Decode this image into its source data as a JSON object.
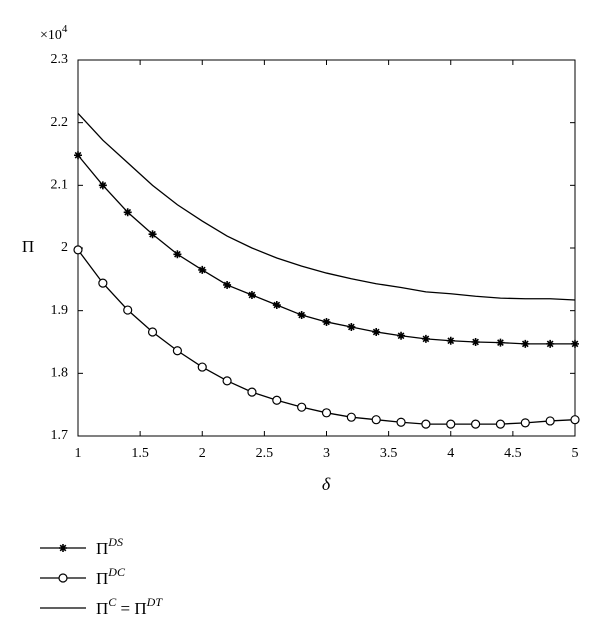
{
  "chart_data": {
    "type": "line",
    "x_label": "δ",
    "y_label": "Π",
    "y_multiplier": {
      "text": "×10",
      "sup": "4"
    },
    "x": [
      1,
      1.2,
      1.4,
      1.6,
      1.8,
      2,
      2.2,
      2.4,
      2.6,
      2.8,
      3,
      3.2,
      3.4,
      3.6,
      3.8,
      4,
      4.2,
      4.4,
      4.6,
      4.8,
      5
    ],
    "series": [
      {
        "name": [
          {
            "text": "Π"
          },
          {
            "sup": "DS"
          }
        ],
        "color": "#000000",
        "marker": "star",
        "values": [
          2.148,
          2.1,
          2.057,
          2.022,
          1.99,
          1.965,
          1.941,
          1.925,
          1.909,
          1.893,
          1.882,
          1.874,
          1.866,
          1.86,
          1.855,
          1.852,
          1.85,
          1.849,
          1.847,
          1.847,
          1.847
        ]
      },
      {
        "name": [
          {
            "text": "Π"
          },
          {
            "sup": "DC"
          }
        ],
        "color": "#000000",
        "marker": "circle",
        "values": [
          1.997,
          1.944,
          1.901,
          1.866,
          1.836,
          1.81,
          1.788,
          1.77,
          1.757,
          1.746,
          1.737,
          1.73,
          1.726,
          1.722,
          1.719,
          1.719,
          1.719,
          1.719,
          1.721,
          1.724,
          1.726
        ]
      },
      {
        "name": [
          {
            "text": "Π"
          },
          {
            "sup": "C"
          },
          {
            "text": " = Π"
          },
          {
            "sup": "DT"
          }
        ],
        "color": "#000000",
        "marker": "none",
        "values": [
          2.215,
          2.172,
          2.136,
          2.1,
          2.069,
          2.043,
          2.019,
          2.0,
          1.984,
          1.971,
          1.96,
          1.951,
          1.943,
          1.937,
          1.93,
          1.927,
          1.923,
          1.92,
          1.919,
          1.919,
          1.917
        ]
      }
    ],
    "xlim": [
      1,
      5
    ],
    "ylim": [
      1.7,
      2.3
    ],
    "xticks": [
      1,
      1.5,
      2,
      2.5,
      3,
      3.5,
      4,
      4.5,
      5
    ],
    "yticks": [
      1.7,
      1.8,
      1.9,
      2,
      2.1,
      2.2,
      2.3
    ],
    "grid": false
  }
}
